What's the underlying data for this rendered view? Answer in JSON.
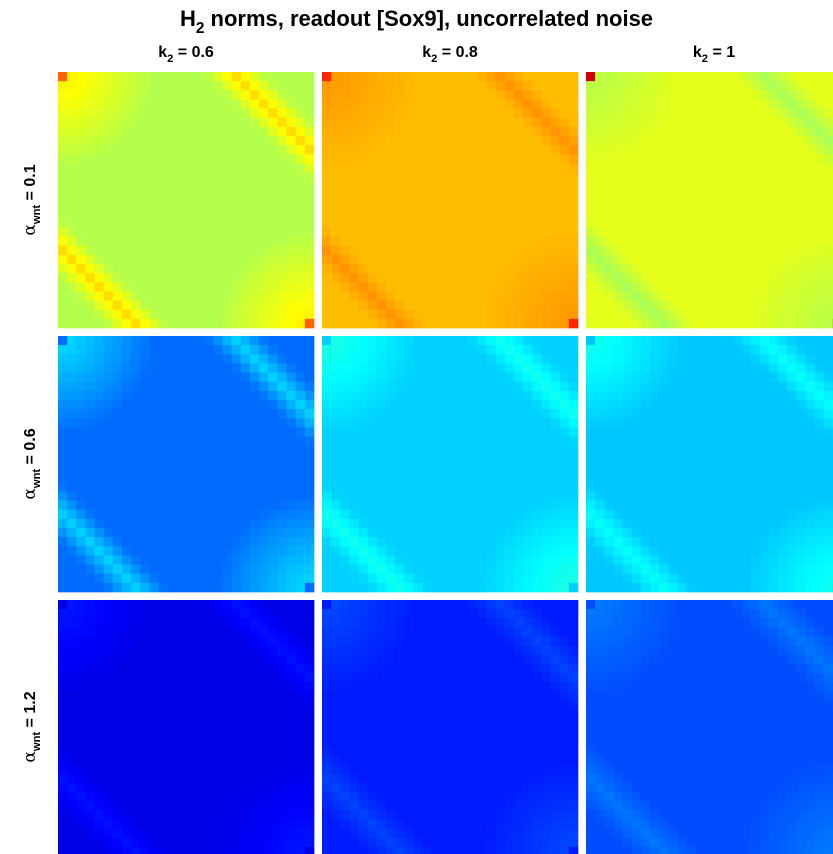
{
  "chart_data": {
    "type": "heatmap",
    "title": {
      "prefix": "H",
      "subscript": "2",
      "rest": " norms, readout [Sox9], uncorrelated noise"
    },
    "columns": [
      {
        "prefix": "k",
        "subscript": "2",
        "suffix": " = 0.6"
      },
      {
        "prefix": "k",
        "subscript": "2",
        "suffix": " = 0.8"
      },
      {
        "prefix": "k",
        "subscript": "2",
        "suffix": " = 1"
      }
    ],
    "rows": [
      {
        "symbol": "α",
        "subscript": "wnt",
        "suffix": " = 0.1"
      },
      {
        "symbol": "α",
        "subscript": "wnt",
        "suffix": " = 0.6"
      },
      {
        "symbol": "α",
        "subscript": "wnt",
        "suffix": " = 1.2"
      }
    ],
    "colormap": "jet",
    "color_range": [
      0,
      1
    ],
    "grid_resolution": 28,
    "panels": [
      [
        {
          "base": 0.55,
          "diag_amp": 0.11,
          "diag_width": 0.12,
          "corner_amp": 0.1,
          "corner_peak": 0.78
        },
        {
          "base": 0.69,
          "diag_amp": 0.04,
          "diag_width": 0.1,
          "corner_amp": 0.04,
          "corner_peak": 0.84
        },
        {
          "base": 0.6,
          "diag_amp": -0.06,
          "diag_width": 0.12,
          "corner_amp": -0.05,
          "corner_peak": 0.92
        }
      ],
      [
        {
          "base": 0.23,
          "diag_amp": 0.1,
          "diag_width": 0.12,
          "corner_amp": 0.12,
          "corner_peak": 0.23
        },
        {
          "base": 0.33,
          "diag_amp": 0.06,
          "diag_width": 0.12,
          "corner_amp": 0.08,
          "corner_peak": 0.33
        },
        {
          "base": 0.32,
          "diag_amp": 0.06,
          "diag_width": 0.12,
          "corner_amp": 0.08,
          "corner_peak": 0.32
        }
      ],
      [
        {
          "base": 0.1,
          "diag_amp": 0.04,
          "diag_width": 0.14,
          "corner_amp": 0.05,
          "corner_peak": 0.1
        },
        {
          "base": 0.15,
          "diag_amp": 0.04,
          "diag_width": 0.14,
          "corner_amp": 0.05,
          "corner_peak": 0.15
        },
        {
          "base": 0.2,
          "diag_amp": 0.04,
          "diag_width": 0.14,
          "corner_amp": 0.05,
          "corner_peak": 0.2
        }
      ]
    ]
  }
}
